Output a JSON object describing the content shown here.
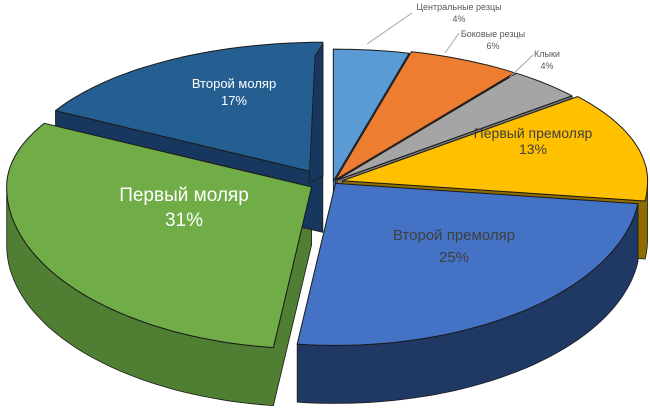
{
  "chart_data": {
    "type": "pie",
    "is_3d": true,
    "start_angle_deg": 0,
    "direction": "clockwise",
    "background": "#FFFFFF",
    "slices": [
      {
        "label": "Центральные резцы",
        "value": 4,
        "pct": "4%",
        "color": "#5B9BD5",
        "side_color": "#3A74A8",
        "label_placement": "outside"
      },
      {
        "label": "Боковые резцы",
        "value": 6,
        "pct": "6%",
        "color": "#ED7D31",
        "side_color": "#AE5A21",
        "label_placement": "outside"
      },
      {
        "label": "Клыки",
        "value": 4,
        "pct": "4%",
        "color": "#A5A5A5",
        "side_color": "#767676",
        "label_placement": "outside"
      },
      {
        "label": "Первый премоляр",
        "value": 13,
        "pct": "13%",
        "color": "#FFC000",
        "side_color": "#8F6C00",
        "label_placement": "inside"
      },
      {
        "label": "Второй премоляр",
        "value": 25,
        "pct": "25%",
        "color": "#4472C4",
        "side_color": "#1F3864",
        "label_placement": "inside"
      },
      {
        "label": "Первый моляр",
        "value": 31,
        "pct": "31%",
        "color": "#70AD47",
        "side_color": "#507E32",
        "label_placement": "inside"
      },
      {
        "label": "Второй моляр",
        "value": 17,
        "pct": "17%",
        "color": "#255E91",
        "side_color": "#17375E",
        "label_placement": "inside"
      }
    ],
    "label_colors": {
      "outside": "#595959",
      "inside_dark": "#3F3F3F",
      "inside_light": "#FFFFFF"
    },
    "leader_line_color": "#A6A6A6",
    "outline_color": "#1a1a1a"
  }
}
